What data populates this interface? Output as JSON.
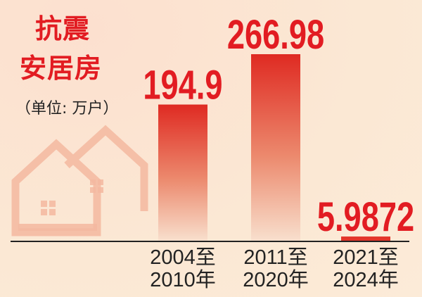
{
  "title_line1": "抗震",
  "title_line2": "安居房",
  "unit": "（单位: 万户）",
  "chart_data": {
    "type": "bar",
    "title": "抗震安居房",
    "ylabel": "（单位: 万户）",
    "categories": [
      [
        "2004至",
        "2010年"
      ],
      [
        "2011至",
        "2020年"
      ],
      [
        "2021至",
        "2024年"
      ]
    ],
    "values": [
      194.9,
      266.98,
      5.9872
    ],
    "value_labels": [
      "194.9",
      "266.98",
      "5.9872"
    ],
    "ylim": [
      0,
      270
    ],
    "grid": false,
    "bar_color": "#e3352a",
    "label_color": "#e21c22"
  }
}
